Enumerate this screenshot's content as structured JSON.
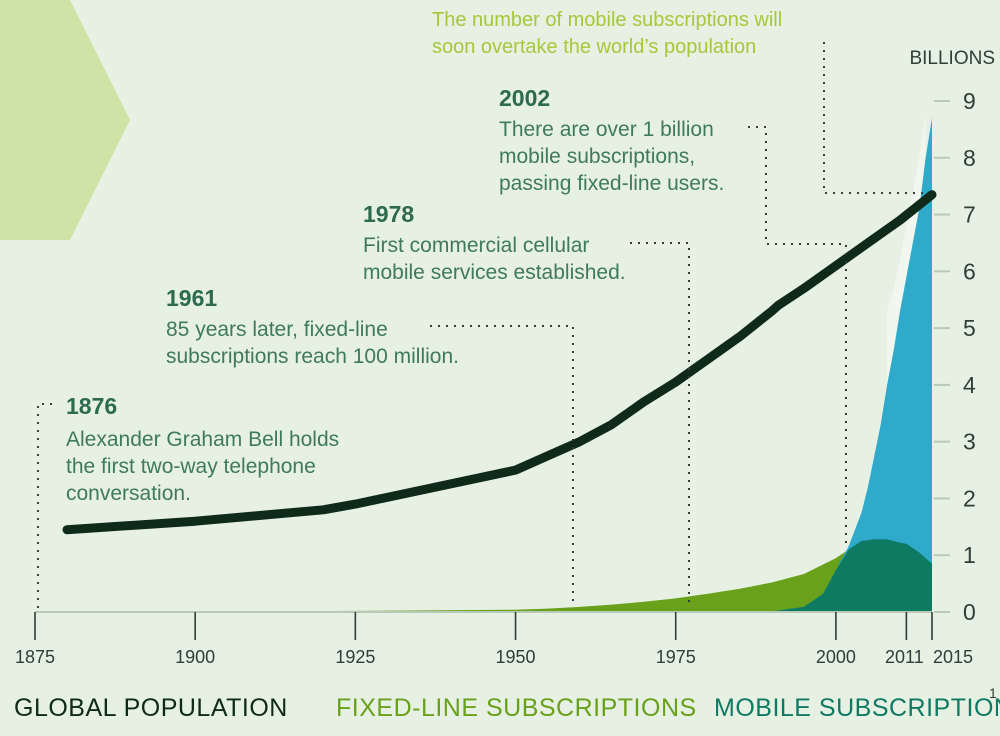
{
  "chart_data": {
    "type": "area",
    "unit_label": "BILLIONS",
    "ylim": [
      0,
      9
    ],
    "y_ticks": [
      "0",
      "1",
      "2",
      "3",
      "4",
      "5",
      "6",
      "7",
      "8",
      "9"
    ],
    "x_ticks": [
      "1875",
      "1900",
      "1925",
      "1950",
      "1975",
      "2000",
      "2011",
      "2015"
    ],
    "top_note": [
      "The number of mobile subscriptions will",
      "soon overtake the world’s population"
    ],
    "annotations": [
      {
        "year": "1876",
        "lines": [
          "Alexander Graham Bell holds",
          "the first two-way telephone",
          "conversation."
        ]
      },
      {
        "year": "1961",
        "lines": [
          "85 years later, fixed-line",
          "subscriptions reach 100 million."
        ]
      },
      {
        "year": "1978",
        "lines": [
          "First commercial cellular",
          "mobile services established."
        ]
      },
      {
        "year": "2002",
        "lines": [
          "There are over 1 billion",
          "mobile subscriptions,",
          "passing fixed-line users."
        ]
      }
    ],
    "legend": [
      {
        "label": "GLOBAL POPULATION",
        "color": "#0f2a18"
      },
      {
        "label": "FIXED-LINE SUBSCRIPTIONS",
        "color": "#6aa11b"
      },
      {
        "label": "MOBILE SUBSCRIPTIONS",
        "color": "#0f7a62"
      }
    ],
    "footnote": "1",
    "series": [
      {
        "key": "population",
        "color": "#0f2a18",
        "x": [
          1880,
          1900,
          1920,
          1925,
          1950,
          1955,
          1960,
          1965,
          1970,
          1975,
          1980,
          1985,
          1990,
          1991,
          1995,
          2000,
          2005,
          2010,
          2015
        ],
        "y": [
          1.45,
          1.6,
          1.8,
          1.9,
          2.5,
          2.75,
          3.0,
          3.3,
          3.7,
          4.05,
          4.45,
          4.85,
          5.3,
          5.4,
          5.7,
          6.1,
          6.5,
          6.9,
          7.35
        ]
      },
      {
        "key": "fixed_line",
        "color": "#6aa11b",
        "x": [
          1876,
          1900,
          1925,
          1950,
          1955,
          1960,
          1965,
          1970,
          1975,
          1980,
          1985,
          1990,
          1995,
          2000,
          2002,
          2005,
          2008,
          2011,
          2015
        ],
        "y": [
          0,
          0.005,
          0.02,
          0.04,
          0.06,
          0.09,
          0.13,
          0.18,
          0.24,
          0.32,
          0.41,
          0.52,
          0.67,
          0.95,
          1.1,
          1.25,
          1.28,
          1.2,
          0.85
        ]
      },
      {
        "key": "mobile",
        "color": "#2faacb",
        "x": [
          1990,
          1995,
          1998,
          2000,
          2002,
          2004,
          2005,
          2007,
          2008,
          2009,
          2010,
          2011,
          2012,
          2013,
          2014,
          2015
        ],
        "y": [
          0.01,
          0.09,
          0.32,
          0.74,
          1.16,
          1.75,
          2.2,
          3.3,
          4.0,
          4.6,
          5.3,
          5.9,
          6.5,
          7.1,
          8.0,
          8.7
        ]
      },
      {
        "key": "mobile_fixed_overlap",
        "color": "#0f7a62",
        "x": [
          1990,
          1995,
          1998,
          2000,
          2002,
          2004,
          2006,
          2008,
          2010,
          2011,
          2013,
          2015
        ],
        "y": [
          0.01,
          0.09,
          0.32,
          0.74,
          1.1,
          1.25,
          1.28,
          1.28,
          1.22,
          1.2,
          1.05,
          0.85
        ]
      },
      {
        "key": "mobile_projection",
        "color": "#f2f7ee",
        "x": [
          2008,
          2009,
          2010,
          2011,
          2012,
          2013,
          2014
        ],
        "y": [
          5.3,
          5.7,
          6.2,
          6.8,
          7.4,
          8.0,
          8.8
        ]
      }
    ]
  }
}
